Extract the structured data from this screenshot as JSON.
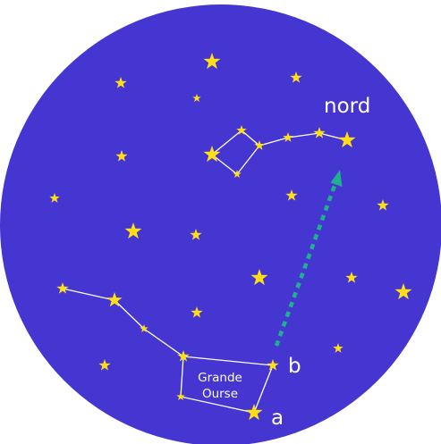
{
  "labels": {
    "north": "nord",
    "constellation_line1": "Grande",
    "constellation_line2": "Ourse",
    "star_a": "a",
    "star_b": "b"
  },
  "colors": {
    "sky": "#4535d1",
    "star": "#ffde18",
    "constellation_line": "#ffffff",
    "arrow": "#1fb08d",
    "text": "#ffffff"
  }
}
